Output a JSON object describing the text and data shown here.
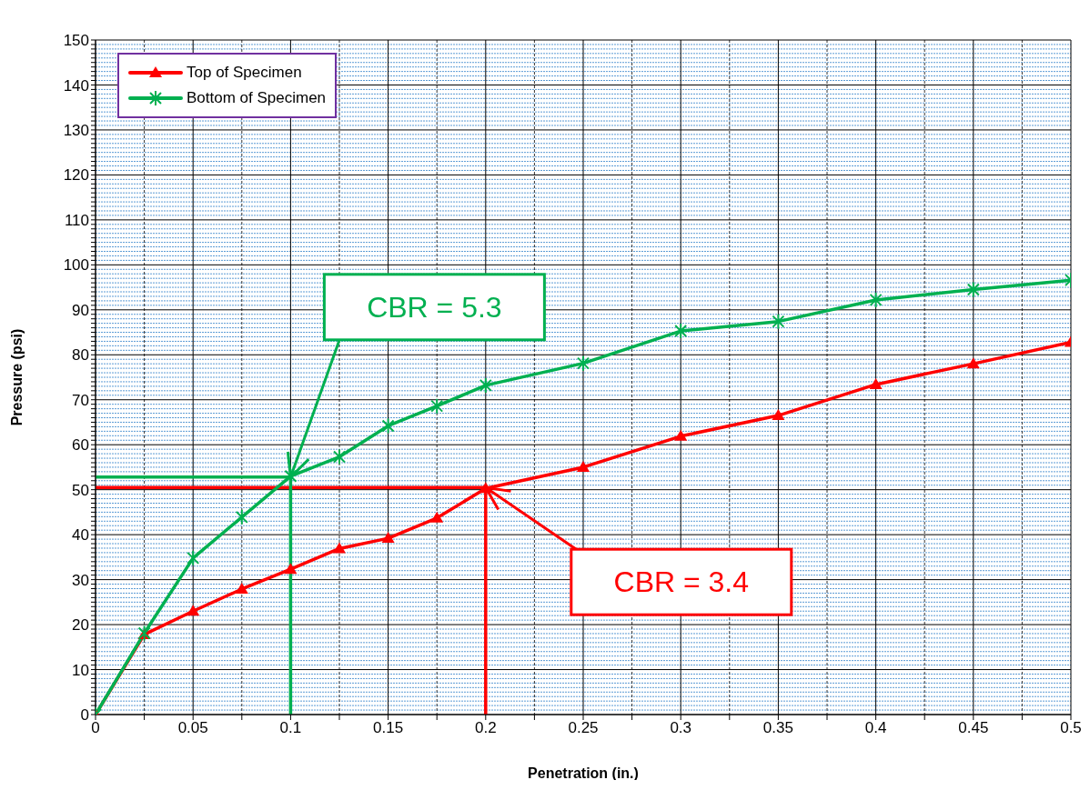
{
  "chart_data": {
    "type": "line",
    "xlabel": "Penetration (in.)",
    "ylabel": "Pressure (psi)",
    "x": [
      0,
      0.025,
      0.05,
      0.075,
      0.1,
      0.125,
      0.15,
      0.175,
      0.2,
      0.25,
      0.3,
      0.35,
      0.4,
      0.45,
      0.5
    ],
    "series": [
      {
        "name": "Top of Specimen",
        "color": "#ff0000",
        "marker": "triangle",
        "values": [
          0,
          17.8,
          23,
          27.9,
          32.3,
          36.9,
          39.2,
          43.7,
          50.3,
          55,
          61.9,
          66.5,
          73.4,
          78,
          82.8
        ]
      },
      {
        "name": "Bottom of Specimen",
        "color": "#00b050",
        "marker": "cross",
        "values": [
          0,
          18.1,
          34.8,
          43.9,
          53,
          57.3,
          64.2,
          68.6,
          73.2,
          78.1,
          85.3,
          87.4,
          92.2,
          94.5,
          96.6
        ]
      },
      {
        "type": "line",
        "color": "#ff0000",
        "marker": "none",
        "x": [
          0,
          0.2,
          0.2
        ],
        "values": [
          50.5,
          50.5,
          0
        ]
      },
      {
        "type": "line",
        "color": "#00b050",
        "marker": "none",
        "x": [
          0,
          0.1,
          0.1
        ],
        "values": [
          52.8,
          52.8,
          0
        ]
      }
    ],
    "annotations": [
      {
        "text": "CBR = 3.4",
        "x": 0.2,
        "y": 50.5
      },
      {
        "text": "CBR = 5.3",
        "x": 0.1,
        "y": 52.8
      }
    ],
    "xlim": [
      0,
      0.5
    ],
    "xticks": [
      0,
      {
        "value": 0.025,
        "label": null
      },
      0.05,
      {
        "value": 0.075,
        "label": null
      },
      0.1,
      {
        "value": 0.125,
        "label": null
      },
      0.15,
      {
        "value": 0.175,
        "label": null
      },
      0.2,
      {
        "value": 0.225,
        "label": null
      },
      0.25,
      {
        "value": 0.275,
        "label": null
      },
      0.3,
      {
        "value": 0.325,
        "label": null
      },
      0.35,
      {
        "value": 0.375,
        "label": null
      },
      0.4,
      {
        "value": 0.425,
        "label": null
      },
      0.45,
      {
        "value": 0.475,
        "label": null
      },
      0.5
    ],
    "ylim": [
      0,
      150
    ],
    "yticks": [
      0,
      {
        "value": 1,
        "label": null
      },
      {
        "value": 2,
        "label": null
      },
      {
        "value": 3,
        "label": null
      },
      {
        "value": 4,
        "label": null
      },
      {
        "value": 5,
        "label": null
      },
      {
        "value": 6,
        "label": null
      },
      {
        "value": 7,
        "label": null
      },
      {
        "value": 8,
        "label": null
      },
      {
        "value": 9,
        "label": null
      },
      10,
      {
        "value": 11,
        "label": null
      },
      {
        "value": 12,
        "label": null
      },
      {
        "value": 13,
        "label": null
      },
      {
        "value": 14,
        "label": null
      },
      {
        "value": 15,
        "label": null
      },
      {
        "value": 16,
        "label": null
      },
      {
        "value": 17,
        "label": null
      },
      {
        "value": 18,
        "label": null
      },
      {
        "value": 19,
        "label": null
      },
      20,
      {
        "value": 21,
        "label": null
      },
      {
        "value": 22,
        "label": null
      },
      {
        "value": 23,
        "label": null
      },
      {
        "value": 24,
        "label": null
      },
      {
        "value": 25,
        "label": null
      },
      {
        "value": 26,
        "label": null
      },
      {
        "value": 27,
        "label": null
      },
      {
        "value": 28,
        "label": null
      },
      {
        "value": 29,
        "label": null
      },
      30,
      {
        "value": 31,
        "label": null
      },
      {
        "value": 32,
        "label": null
      },
      {
        "value": 33,
        "label": null
      },
      {
        "value": 34,
        "label": null
      },
      {
        "value": 35,
        "label": null
      },
      {
        "value": 36,
        "label": null
      },
      {
        "value": 37,
        "label": null
      },
      {
        "value": 38,
        "label": null
      },
      {
        "value": 39,
        "label": null
      },
      40,
      {
        "value": 41,
        "label": null
      },
      {
        "value": 42,
        "label": null
      },
      {
        "value": 43,
        "label": null
      },
      {
        "value": 44,
        "label": null
      },
      {
        "value": 45,
        "label": null
      },
      {
        "value": 46,
        "label": null
      },
      {
        "value": 47,
        "label": null
      },
      {
        "value": 48,
        "label": null
      },
      {
        "value": 49,
        "label": null
      },
      50,
      {
        "value": 51,
        "label": null
      },
      {
        "value": 52,
        "label": null
      },
      {
        "value": 53,
        "label": null
      },
      {
        "value": 54,
        "label": null
      },
      {
        "value": 55,
        "label": null
      },
      {
        "value": 56,
        "label": null
      },
      {
        "value": 57,
        "label": null
      },
      {
        "value": 58,
        "label": null
      },
      {
        "value": 59,
        "label": null
      },
      60,
      {
        "value": 61,
        "label": null
      },
      {
        "value": 62,
        "label": null
      },
      {
        "value": 63,
        "label": null
      },
      {
        "value": 64,
        "label": null
      },
      {
        "value": 65,
        "label": null
      },
      {
        "value": 66,
        "label": null
      },
      {
        "value": 67,
        "label": null
      },
      {
        "value": 68,
        "label": null
      },
      {
        "value": 69,
        "label": null
      },
      70,
      {
        "value": 71,
        "label": null
      },
      {
        "value": 72,
        "label": null
      },
      {
        "value": 73,
        "label": null
      },
      {
        "value": 74,
        "label": null
      },
      {
        "value": 75,
        "label": null
      },
      {
        "value": 76,
        "label": null
      },
      {
        "value": 77,
        "label": null
      },
      {
        "value": 78,
        "label": null
      },
      {
        "value": 79,
        "label": null
      },
      80,
      {
        "value": 81,
        "label": null
      },
      {
        "value": 82,
        "label": null
      },
      {
        "value": 83,
        "label": null
      },
      {
        "value": 84,
        "label": null
      },
      {
        "value": 85,
        "label": null
      },
      {
        "value": 86,
        "label": null
      },
      {
        "value": 87,
        "label": null
      },
      {
        "value": 88,
        "label": null
      },
      {
        "value": 89,
        "label": null
      },
      90,
      {
        "value": 91,
        "label": null
      },
      {
        "value": 92,
        "label": null
      },
      {
        "value": 93,
        "label": null
      },
      {
        "value": 94,
        "label": null
      },
      {
        "value": 95,
        "label": null
      },
      {
        "value": 96,
        "label": null
      },
      {
        "value": 97,
        "label": null
      },
      {
        "value": 98,
        "label": null
      },
      {
        "value": 99,
        "label": null
      },
      100,
      {
        "value": 101,
        "label": null
      },
      {
        "value": 102,
        "label": null
      },
      {
        "value": 103,
        "label": null
      },
      {
        "value": 104,
        "label": null
      },
      {
        "value": 105,
        "label": null
      },
      {
        "value": 106,
        "label": null
      },
      {
        "value": 107,
        "label": null
      },
      {
        "value": 108,
        "label": null
      },
      {
        "value": 109,
        "label": null
      },
      110,
      {
        "value": 111,
        "label": null
      },
      {
        "value": 112,
        "label": null
      },
      {
        "value": 113,
        "label": null
      },
      {
        "value": 114,
        "label": null
      },
      {
        "value": 115,
        "label": null
      },
      {
        "value": 116,
        "label": null
      },
      {
        "value": 117,
        "label": null
      },
      {
        "value": 118,
        "label": null
      },
      {
        "value": 119,
        "label": null
      },
      120,
      {
        "value": 121,
        "label": null
      },
      {
        "value": 122,
        "label": null
      },
      {
        "value": 123,
        "label": null
      },
      {
        "value": 124,
        "label": null
      },
      {
        "value": 125,
        "label": null
      },
      {
        "value": 126,
        "label": null
      },
      {
        "value": 127,
        "label": null
      },
      {
        "value": 128,
        "label": null
      },
      {
        "value": 129,
        "label": null
      },
      130,
      {
        "value": 131,
        "label": null
      },
      {
        "value": 132,
        "label": null
      },
      {
        "value": 133,
        "label": null
      },
      {
        "value": 134,
        "label": null
      },
      {
        "value": 135,
        "label": null
      },
      {
        "value": 136,
        "label": null
      },
      {
        "value": 137,
        "label": null
      },
      {
        "value": 138,
        "label": null
      },
      {
        "value": 139,
        "label": null
      },
      140,
      {
        "value": 141,
        "label": null
      },
      {
        "value": 142,
        "label": null
      },
      {
        "value": 143,
        "label": null
      },
      {
        "value": 144,
        "label": null
      },
      {
        "value": 145,
        "label": null
      },
      {
        "value": 146,
        "label": null
      },
      {
        "value": 147,
        "label": null
      },
      {
        "value": 148,
        "label": null
      },
      {
        "value": 149,
        "label": null
      },
      150
    ],
    "grid": true,
    "legend": "top left"
  }
}
